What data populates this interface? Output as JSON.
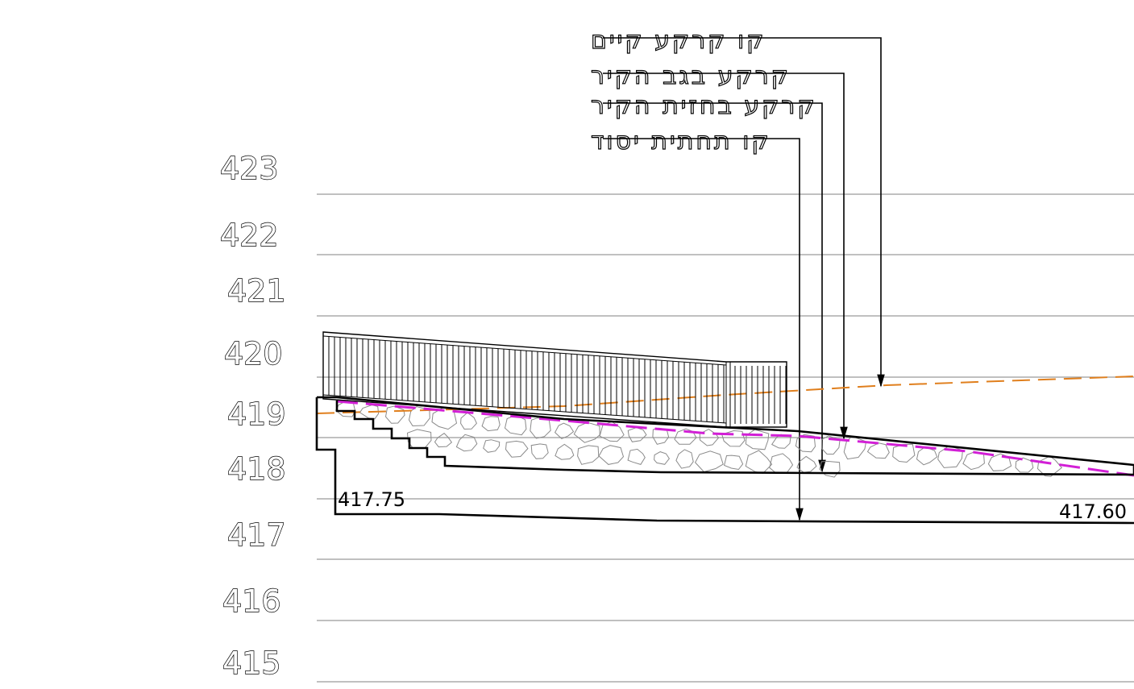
{
  "elevations": [
    "423",
    "422",
    "421",
    "420",
    "419",
    "418",
    "417",
    "416",
    "415"
  ],
  "callouts": [
    "קו קרקע קיים",
    "קרקע בגב הקיר",
    "קרקע בחזית הקיר",
    "קו תחתית יסוד"
  ],
  "dimensions": {
    "left_foundation_level": "417.75",
    "right_foundation_level": "417.60"
  },
  "colors": {
    "existing_ground": "#e07f1d",
    "front_ground": "#d21fd6",
    "grid": "#9a9a9a",
    "outline": "#000000"
  }
}
